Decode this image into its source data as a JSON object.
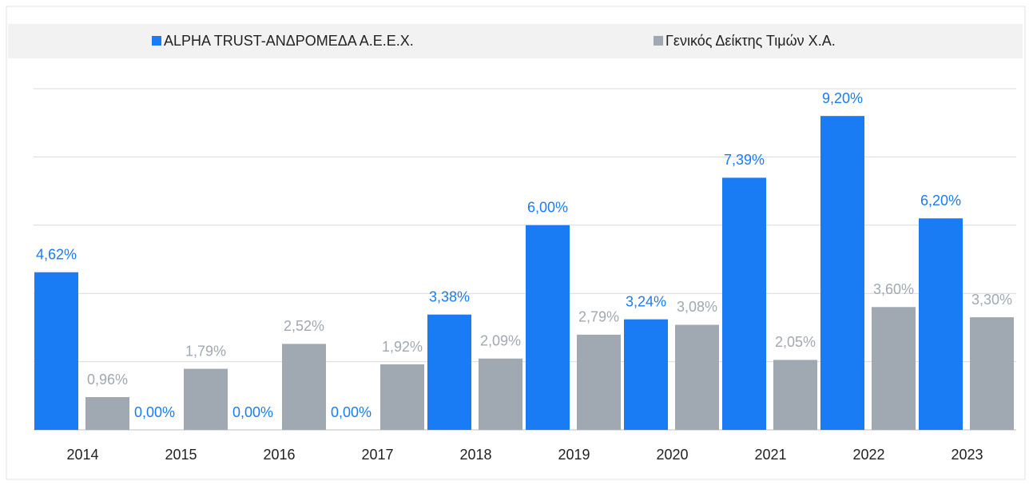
{
  "chart_data": {
    "type": "bar",
    "categories": [
      "2014",
      "2015",
      "2016",
      "2017",
      "2018",
      "2019",
      "2020",
      "2021",
      "2022",
      "2023"
    ],
    "series": [
      {
        "name": "ALPHA TRUST-ΑΝΔΡΟΜΕΔΑ Α.Ε.Ε.Χ.",
        "color": "#1a7cf5",
        "values": [
          4.62,
          0,
          0,
          0,
          3.38,
          6.0,
          3.24,
          7.39,
          9.2,
          6.2
        ],
        "value_labels": [
          "4,62%",
          "0,00%",
          "0,00%",
          "0,00%",
          "3,38%",
          "6,00%",
          "3,24%",
          "7,39%",
          "9,20%",
          "6,20%"
        ]
      },
      {
        "name": "Γενικός Δείκτης Τιμών Χ.Α.",
        "color": "#a0a8b1",
        "values": [
          0.96,
          1.79,
          2.52,
          1.92,
          2.09,
          2.79,
          3.08,
          2.05,
          3.6,
          3.3
        ],
        "value_labels": [
          "0,96%",
          "1,79%",
          "2,52%",
          "1,92%",
          "2,09%",
          "2,79%",
          "3,08%",
          "2,05%",
          "3,60%",
          "3,30%"
        ]
      }
    ],
    "ylim": [
      0,
      10
    ],
    "yticks": [
      0,
      2,
      4,
      6,
      8,
      10
    ],
    "grid": true,
    "legend": "top"
  }
}
